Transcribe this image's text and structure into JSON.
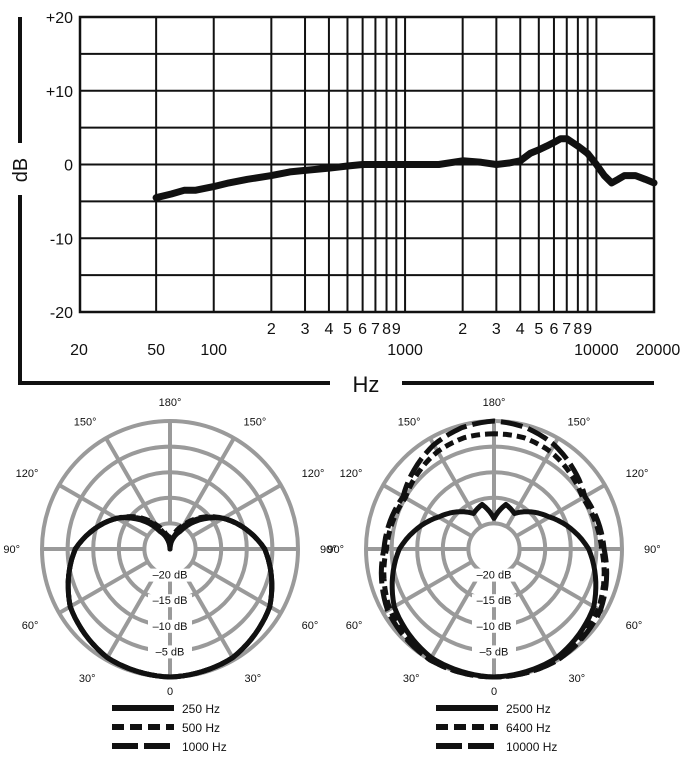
{
  "chart_data": [
    {
      "type": "line",
      "title": "",
      "xlabel": "Hz",
      "ylabel": "dB",
      "x_scale": "log",
      "xlim": [
        20,
        20000
      ],
      "ylim": [
        -20,
        20
      ],
      "y_ticks": [
        20,
        10,
        0,
        -10,
        -20
      ],
      "y_tick_labels": [
        "+20",
        "+10",
        "0",
        "-10",
        "-20"
      ],
      "x_major_labels": [
        {
          "value": 20,
          "label": "20"
        },
        {
          "value": 50,
          "label": "50"
        },
        {
          "value": 100,
          "label": "100"
        },
        {
          "value": 1000,
          "label": "1000"
        },
        {
          "value": 10000,
          "label": "10000"
        },
        {
          "value": 20000,
          "label": "20000"
        }
      ],
      "x_minor_labels": [
        {
          "value": 200,
          "label": "2"
        },
        {
          "value": 300,
          "label": "3"
        },
        {
          "value": 400,
          "label": "4"
        },
        {
          "value": 500,
          "label": "5"
        },
        {
          "value": 600,
          "label": "6"
        },
        {
          "value": 700,
          "label": "7"
        },
        {
          "value": 800,
          "label": "8"
        },
        {
          "value": 900,
          "label": "9"
        },
        {
          "value": 2000,
          "label": "2"
        },
        {
          "value": 3000,
          "label": "3"
        },
        {
          "value": 4000,
          "label": "4"
        },
        {
          "value": 5000,
          "label": "5"
        },
        {
          "value": 6000,
          "label": "6"
        },
        {
          "value": 7000,
          "label": "7"
        },
        {
          "value": 8000,
          "label": "8"
        },
        {
          "value": 9000,
          "label": "9"
        }
      ],
      "grid": true,
      "series": [
        {
          "x": [
            50,
            60,
            70,
            80,
            100,
            120,
            150,
            200,
            250,
            300,
            400,
            500,
            600,
            700,
            800,
            900,
            1000,
            1500,
            2000,
            2500,
            3000,
            3500,
            4000,
            4500,
            5000,
            5500,
            6000,
            6500,
            7000,
            8000,
            9000,
            10000,
            11000,
            12000,
            13000,
            14000,
            16000,
            18000,
            20000
          ],
          "y": [
            -4.5,
            -4,
            -3.5,
            -3.5,
            -3,
            -2.5,
            -2,
            -1.5,
            -1,
            -0.8,
            -0.5,
            -0.2,
            0,
            0,
            0,
            0,
            0,
            0,
            0.5,
            0.3,
            0,
            0.2,
            0.5,
            1.5,
            2,
            2.5,
            3,
            3.5,
            3.5,
            2.5,
            1.5,
            0,
            -1.5,
            -2.5,
            -2,
            -1.5,
            -1.5,
            -2,
            -2.5
          ]
        }
      ]
    },
    {
      "type": "polar",
      "angle_labels": [
        "180°",
        "150°",
        "150°",
        "120°",
        "120°",
        "90°",
        "90°",
        "60°",
        "60°",
        "30°",
        "30°",
        "0"
      ],
      "radial_labels": [
        "–20 dB",
        "–15 dB",
        "–10 dB",
        "–5 dB"
      ],
      "legend": "bottom",
      "series": [
        {
          "name": "250 Hz",
          "line": "solid",
          "theta_deg": [
            0,
            30,
            60,
            90,
            120,
            150,
            165,
            180
          ],
          "level_db": [
            0,
            -0.5,
            -2.5,
            -6.5,
            -13,
            -21,
            -23,
            -25
          ]
        },
        {
          "name": "500 Hz",
          "line": "dotted",
          "theta_deg": [
            0,
            30,
            60,
            90,
            120,
            150,
            165,
            180
          ],
          "level_db": [
            0,
            -0.5,
            -2.5,
            -6.5,
            -13,
            -19.5,
            -22,
            -23
          ]
        },
        {
          "name": "1000 Hz",
          "line": "dashed",
          "theta_deg": [
            0,
            30,
            60,
            90,
            120,
            150,
            165,
            180
          ],
          "level_db": [
            0,
            -0.5,
            -2.5,
            -6.5,
            -13,
            -20,
            -23,
            -25
          ]
        }
      ]
    },
    {
      "type": "polar",
      "angle_labels": [
        "180°",
        "150°",
        "150°",
        "120°",
        "120°",
        "90°",
        "90°",
        "60°",
        "60°",
        "30°",
        "30°",
        "0"
      ],
      "radial_labels": [
        "–20 dB",
        "–15 dB",
        "–10 dB",
        "–5 dB"
      ],
      "legend": "bottom",
      "series": [
        {
          "name": "2500 Hz",
          "line": "solid",
          "theta_deg": [
            0,
            30,
            60,
            90,
            120,
            150,
            165,
            180
          ],
          "level_db": [
            0,
            -0.5,
            -2.5,
            -6.5,
            -12.5,
            -17,
            -16,
            -19
          ]
        },
        {
          "name": "6400 Hz",
          "line": "dotted",
          "theta_deg": [
            0,
            30,
            60,
            90,
            120,
            150,
            165,
            180
          ],
          "level_db": [
            0,
            0,
            -1.5,
            -4,
            -5,
            -3,
            -2.5,
            -2.5
          ]
        },
        {
          "name": "10000 Hz",
          "line": "dashed",
          "theta_deg": [
            0,
            30,
            60,
            90,
            120,
            150,
            165,
            180
          ],
          "level_db": [
            0,
            0,
            -1,
            -3.5,
            -4.5,
            -1.5,
            -0.5,
            0
          ]
        }
      ]
    }
  ]
}
